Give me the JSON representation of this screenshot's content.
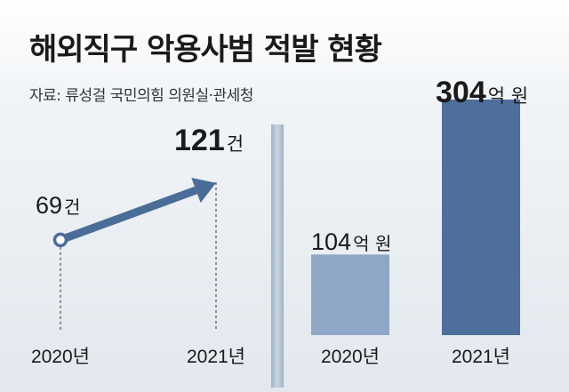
{
  "title": "해외직구 악용사범 적발 현황",
  "source": "자료: 류성걸 국민의힘 의원실·관세청",
  "colors": {
    "arrow": "#4a6d98",
    "bar_2020": "#8ea7c7",
    "bar_2021": "#4e6f9c",
    "text": "#1a1a1a"
  },
  "chart_data": [
    {
      "type": "line",
      "categories": [
        "2020년",
        "2021년"
      ],
      "values": [
        69,
        121
      ],
      "value_labels": [
        {
          "number": "69",
          "unit": "건"
        },
        {
          "number": "121",
          "unit": "건"
        }
      ],
      "ylim": [
        0,
        150
      ]
    },
    {
      "type": "bar",
      "categories": [
        "2020년",
        "2021년"
      ],
      "values": [
        104,
        304
      ],
      "value_labels": [
        {
          "number": "104",
          "unit": "억 원"
        },
        {
          "number": "304",
          "unit": "억 원"
        }
      ],
      "ylim": [
        0,
        330
      ]
    }
  ]
}
